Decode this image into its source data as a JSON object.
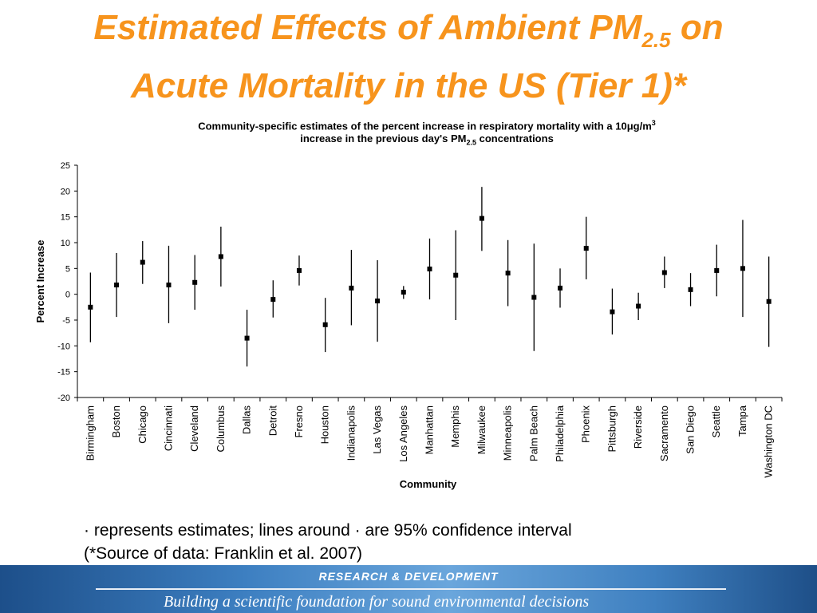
{
  "slide": {
    "title_line1_main": "Estimated Effects of Ambient PM",
    "title_line1_sub": "2.5",
    "title_line1_end": " on",
    "title_line2": "Acute Mortality in the US (Tier 1)*"
  },
  "chart_title": {
    "line1_pre": "Community-specific estimates of the percent increase in respiratory mortality with a 10",
    "line1_unit": "μg/m",
    "line1_sup": "3",
    "line2_pre": "increase in the previous day's PM",
    "line2_sub": "2.5",
    "line2_post": " concentrations"
  },
  "footnote": {
    "line1": "· represents estimates; lines around · are 95% confidence interval",
    "line2": "(*Source of data: Franklin et al. 2007)"
  },
  "banner": {
    "top": "RESEARCH &  DEVELOPMENT",
    "bottom": "Building a scientific foundation for sound environmental decisions"
  },
  "chart_data": {
    "type": "scatter",
    "title": "",
    "xlabel": "Community",
    "ylabel": "Percent Increase",
    "ylim": [
      -20,
      25
    ],
    "yticks": [
      -20,
      -15,
      -10,
      -5,
      0,
      5,
      10,
      15,
      20,
      25
    ],
    "categories": [
      "Birmingham",
      "Boston",
      "Chicago",
      "Cincinnati",
      "Cleveland",
      "Columbus",
      "Dallas",
      "Detroit",
      "Fresno",
      "Houston",
      "Indianapolis",
      "Las Vegas",
      "Los Angeles",
      "Manhattan",
      "Memphis",
      "Milwaukee",
      "Minneapolis",
      "Palm Beach",
      "Philadelphia",
      "Phoenix",
      "Pittsburgh",
      "Riverside",
      "Sacramento",
      "San Diego",
      "Seattle",
      "Tampa",
      "Washington DC"
    ],
    "series": [
      {
        "estimate": [
          -2.5,
          1.8,
          6.2,
          1.8,
          2.3,
          7.3,
          -8.5,
          -1.0,
          4.6,
          -5.9,
          1.2,
          -1.3,
          0.4,
          4.9,
          3.7,
          14.7,
          4.1,
          -0.6,
          1.2,
          8.9,
          -3.4,
          -2.3,
          4.2,
          0.9,
          4.6,
          5.0,
          -1.4
        ],
        "lower": [
          -9.3,
          -4.4,
          2.0,
          -5.6,
          -3.0,
          1.5,
          -14.0,
          -4.5,
          1.7,
          -11.2,
          -6.0,
          -9.2,
          -0.9,
          -1.0,
          -5.0,
          8.4,
          -2.3,
          -11.0,
          -2.6,
          2.9,
          -7.8,
          -5.0,
          1.2,
          -2.3,
          -0.4,
          -4.4,
          -10.2
        ],
        "upper": [
          4.2,
          8.0,
          10.3,
          9.4,
          7.6,
          13.1,
          -3.0,
          2.7,
          7.5,
          -0.7,
          8.6,
          6.6,
          1.6,
          10.8,
          12.4,
          20.8,
          10.5,
          9.8,
          5.0,
          15.0,
          1.1,
          0.3,
          7.3,
          4.1,
          9.6,
          14.4,
          7.3
        ]
      }
    ],
    "grid": false,
    "legend": "none"
  }
}
